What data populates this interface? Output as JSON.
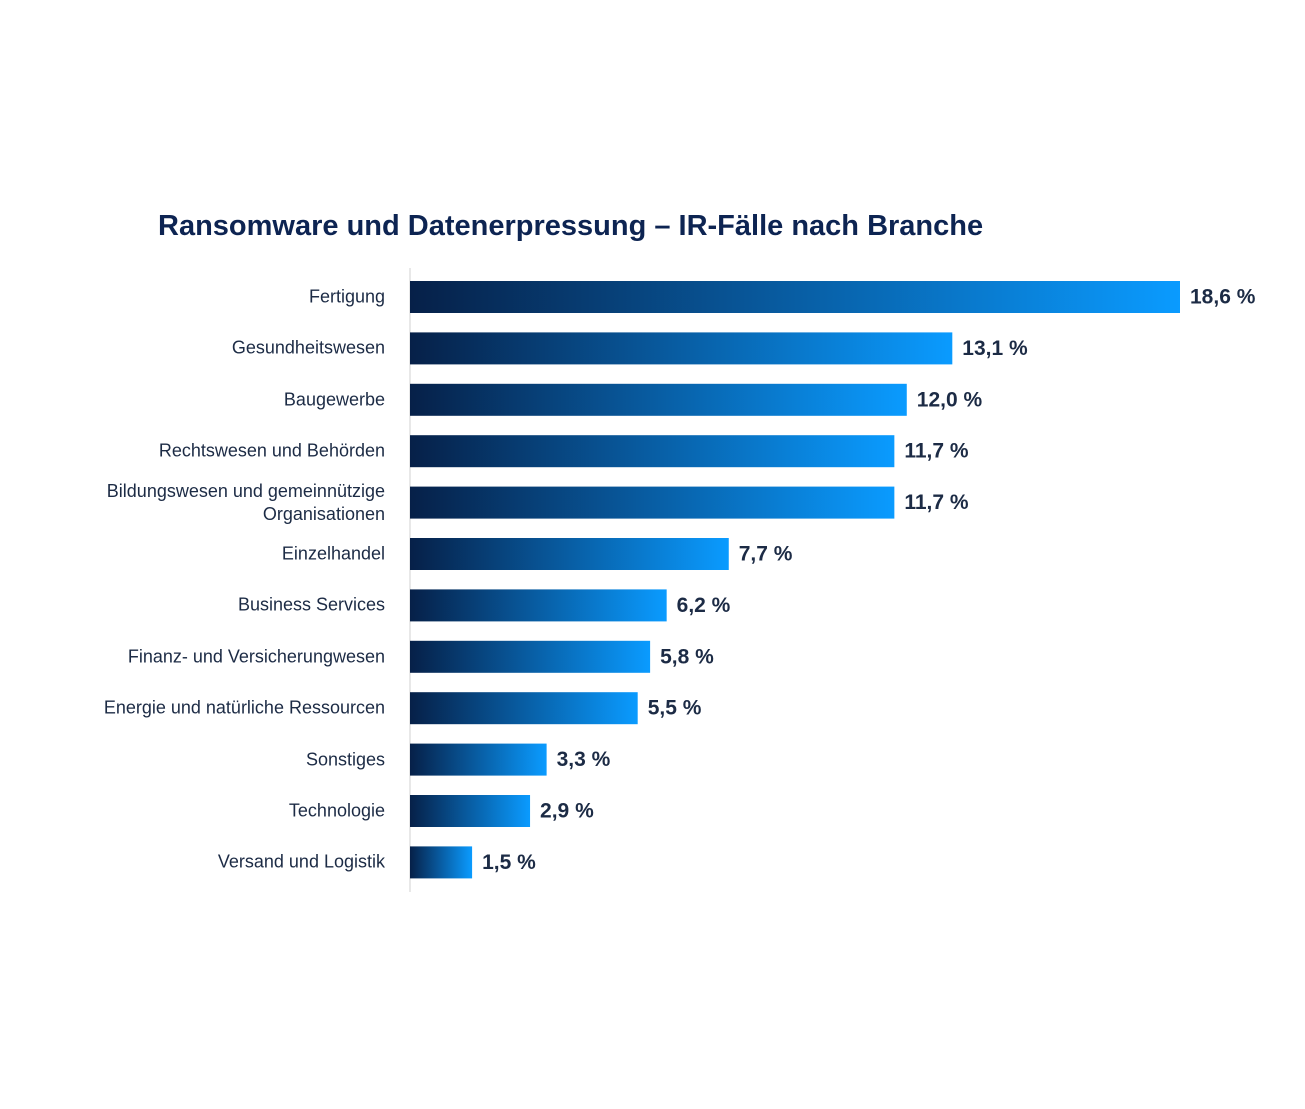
{
  "chart_data": {
    "type": "barh",
    "title": "Ransomware und Datenerpressung – IR-Fälle nach Branche",
    "categories": [
      "Fertigung",
      "Gesundheitswesen",
      "Baugewerbe",
      "Rechtswesen und Behörden",
      "Bildungswesen und gemeinnützige\nOrganisationen",
      "Einzelhandel",
      "Business Services",
      "Finanz- und Versicherungwesen",
      "Energie und natürliche Ressourcen",
      "Sonstiges",
      "Technologie",
      "Versand und Logistik"
    ],
    "values": [
      18.6,
      13.1,
      12.0,
      11.7,
      11.7,
      7.7,
      6.2,
      5.8,
      5.5,
      3.3,
      2.9,
      1.5
    ],
    "value_labels": [
      "18,6 %",
      "13,1 %",
      "12,0 %",
      "11,7 %",
      "11,7 %",
      "7,7 %",
      "6,2 %",
      "5,8 %",
      "5,5 %",
      "3,3 %",
      "2,9 %",
      "1,5 %"
    ],
    "gradient": [
      "#062048",
      "#0a9bff"
    ]
  }
}
